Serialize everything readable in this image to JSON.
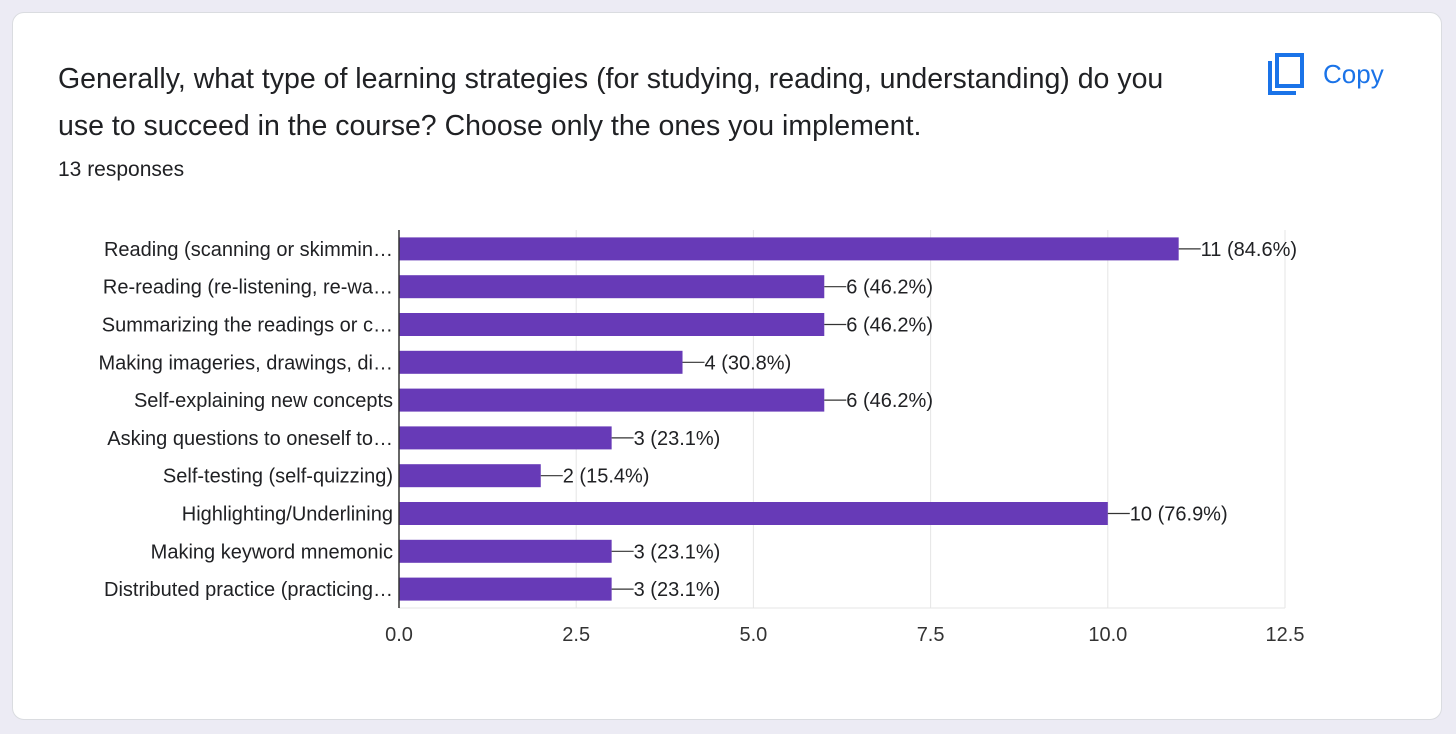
{
  "question": {
    "title": "Generally, what type of learning strategies (for studying, reading, understanding) do you use to succeed in the course? Choose only the ones you implement.",
    "responses": "13 responses"
  },
  "copy_button": {
    "label": "Copy",
    "icon": "copy-icon"
  },
  "colors": {
    "bar": "#673AB7",
    "accent": "#1A73E8",
    "grid": "#E5E5E5",
    "text": "#202124",
    "axis": "#333333"
  },
  "chart_data": {
    "type": "bar",
    "orientation": "horizontal",
    "categories": [
      "Reading (scanning or skimmin…",
      "Re-reading (re-listening, re-wa…",
      "Summarizing the readings or c…",
      "Making imageries, drawings, di…",
      "Self-explaining new concepts",
      "Asking questions to oneself to…",
      "Self-testing (self-quizzing)",
      "Highlighting/Underlining",
      "Making keyword mnemonic",
      "Distributed practice (practicing…"
    ],
    "values": [
      11,
      6,
      6,
      4,
      6,
      3,
      2,
      10,
      3,
      3
    ],
    "labels": [
      "11 (84.6%)",
      "6 (46.2%)",
      "6 (46.2%)",
      "4 (30.8%)",
      "6 (46.2%)",
      "3 (23.1%)",
      "2 (15.4%)",
      "10 (76.9%)",
      "3 (23.1%)",
      "3 (23.1%)"
    ],
    "xlim": [
      0,
      12.5
    ],
    "xticks": [
      "0.0",
      "2.5",
      "5.0",
      "7.5",
      "10.0",
      "12.5"
    ],
    "grid": true,
    "legend": "none"
  }
}
